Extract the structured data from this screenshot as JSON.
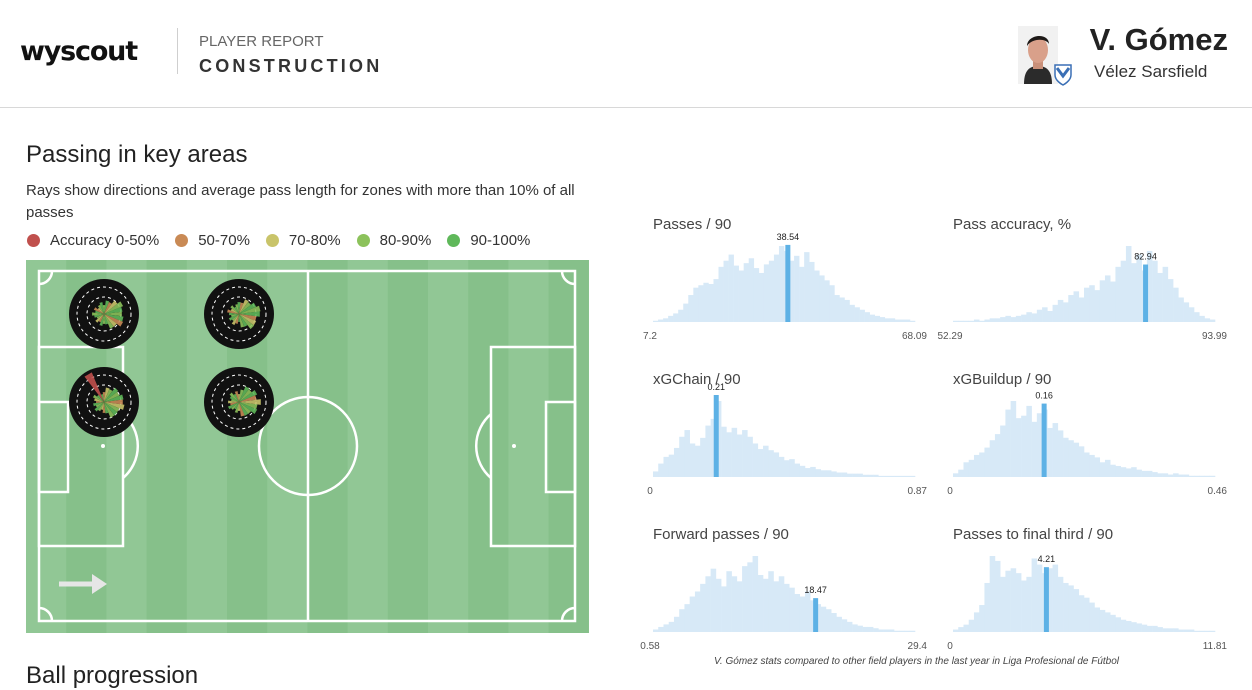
{
  "header": {
    "logo": "wyscout",
    "report_label": "PLAYER REPORT",
    "report_title": "CONSTRUCTION",
    "player_name": "V. Gómez",
    "club": "Vélez Sarsfield"
  },
  "passing": {
    "title": "Passing in key areas",
    "description": "Rays show directions and average pass length for zones with more than 10% of all passes",
    "legend": [
      {
        "label": "Accuracy 0-50%",
        "color": "#c0504d"
      },
      {
        "label": "50-70%",
        "color": "#c98a55"
      },
      {
        "label": "70-80%",
        "color": "#c9c46a"
      },
      {
        "label": "80-90%",
        "color": "#8cc25b"
      },
      {
        "label": "90-100%",
        "color": "#5fb85a"
      }
    ]
  },
  "chart_data": [
    {
      "type": "bar",
      "title": "Passes / 90",
      "min_label": "7.2",
      "max_label": "68.09",
      "xlim": [
        7.2,
        68.09
      ],
      "highlight": 38.54,
      "highlight_label": "38.54",
      "values": [
        1,
        2,
        3,
        5,
        7,
        10,
        15,
        22,
        28,
        30,
        32,
        31,
        35,
        45,
        50,
        55,
        46,
        42,
        48,
        52,
        44,
        40,
        47,
        50,
        55,
        62,
        58,
        50,
        54,
        45,
        57,
        49,
        42,
        38,
        34,
        30,
        22,
        20,
        18,
        14,
        12,
        10,
        8,
        6,
        5,
        4,
        3,
        3,
        2,
        2,
        2,
        1
      ]
    },
    {
      "type": "bar",
      "title": "Pass accuracy, %",
      "min_label": "52.29",
      "max_label": "93.99",
      "xlim": [
        52.29,
        93.99
      ],
      "highlight": 82.94,
      "highlight_label": "82.94",
      "values": [
        1,
        1,
        1,
        1,
        2,
        1,
        2,
        3,
        3,
        4,
        5,
        4,
        5,
        6,
        8,
        7,
        10,
        12,
        9,
        14,
        18,
        16,
        22,
        25,
        20,
        28,
        30,
        26,
        34,
        38,
        33,
        45,
        50,
        62,
        48,
        55,
        42,
        58,
        50,
        40,
        45,
        35,
        28,
        20,
        16,
        12,
        8,
        5,
        3,
        2
      ]
    },
    {
      "type": "bar",
      "title": "xGChain / 90",
      "min_label": "0",
      "max_label": "0.87",
      "xlim": [
        0,
        0.87
      ],
      "highlight": 0.21,
      "highlight_label": "0.21",
      "values": [
        5,
        12,
        18,
        20,
        26,
        36,
        42,
        30,
        28,
        35,
        46,
        52,
        68,
        45,
        40,
        44,
        38,
        42,
        36,
        30,
        25,
        28,
        24,
        22,
        18,
        15,
        16,
        12,
        10,
        8,
        9,
        7,
        6,
        6,
        5,
        4,
        4,
        3,
        3,
        3,
        2,
        2,
        2,
        1,
        1,
        1,
        1,
        1,
        1,
        1
      ]
    },
    {
      "type": "bar",
      "title": "xGBuildup / 90",
      "min_label": "0",
      "max_label": "0.46",
      "xlim": [
        0,
        0.46
      ],
      "highlight": 0.16,
      "highlight_label": "0.16",
      "values": [
        3,
        6,
        12,
        14,
        18,
        20,
        24,
        30,
        35,
        42,
        55,
        62,
        48,
        50,
        58,
        45,
        52,
        55,
        40,
        44,
        38,
        32,
        30,
        28,
        25,
        20,
        18,
        16,
        12,
        14,
        10,
        9,
        8,
        7,
        8,
        6,
        5,
        5,
        4,
        3,
        3,
        2,
        3,
        2,
        2,
        1,
        1,
        1,
        1,
        1
      ]
    },
    {
      "type": "bar",
      "title": "Forward passes / 90",
      "min_label": "0.58",
      "max_label": "29.4",
      "xlim": [
        0.58,
        29.4
      ],
      "highlight": 18.47,
      "highlight_label": "18.47",
      "values": [
        2,
        4,
        6,
        8,
        12,
        18,
        22,
        28,
        32,
        38,
        44,
        50,
        42,
        36,
        48,
        44,
        40,
        52,
        55,
        60,
        45,
        42,
        48,
        40,
        44,
        38,
        35,
        30,
        28,
        32,
        25,
        22,
        20,
        18,
        15,
        12,
        10,
        8,
        6,
        5,
        4,
        4,
        3,
        2,
        2,
        2,
        1,
        1,
        1,
        1
      ]
    },
    {
      "type": "bar",
      "title": "Passes to final third / 90",
      "min_label": "0",
      "max_label": "11.81",
      "xlim": [
        0,
        11.81
      ],
      "highlight": 4.21,
      "highlight_label": "4.21",
      "values": [
        2,
        4,
        6,
        10,
        16,
        22,
        40,
        62,
        58,
        45,
        50,
        52,
        48,
        42,
        45,
        60,
        55,
        48,
        52,
        55,
        45,
        40,
        38,
        35,
        30,
        28,
        24,
        20,
        18,
        16,
        14,
        12,
        10,
        9,
        8,
        7,
        6,
        5,
        5,
        4,
        3,
        3,
        3,
        2,
        2,
        2,
        1,
        1,
        1,
        1
      ]
    }
  ],
  "footnote": "V. Gómez stats compared to other field players in the last year in Liga Profesional de Fútbol",
  "next_section_title": "Ball progression",
  "colors": {
    "pitch_light": "#91c795",
    "pitch_dark": "#86c08a",
    "bar": "#d7e9f7",
    "highlight_bar": "#5db1e5"
  }
}
